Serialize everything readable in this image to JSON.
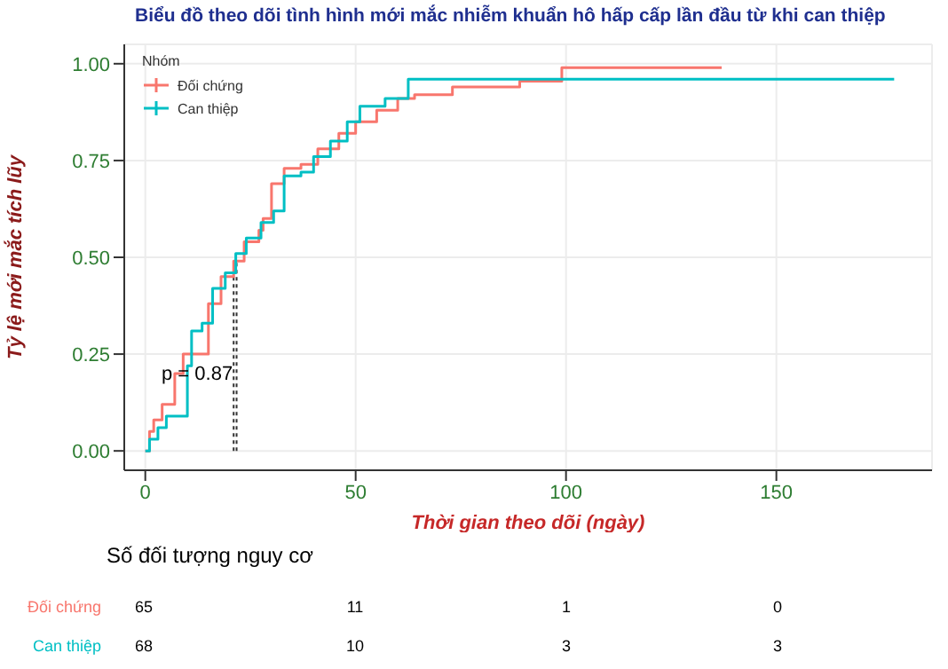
{
  "chart_data": [
    {
      "type": "step",
      "title": "Biểu đồ theo dõi tình hình mới mắc nhiễm khuẩn hô hấp cấp lần đầu từ khi can thiệp",
      "xlabel": "Thời gian theo dõi (ngày)",
      "ylabel": "Tỷ lệ mới mắc tích lũy",
      "legend_title": "Nhóm",
      "legend": "top left",
      "grid": true,
      "xlim": [
        -5,
        187
      ],
      "xticks": [
        0,
        50,
        100,
        150
      ],
      "ylim": [
        -0.05,
        1.05
      ],
      "yticks": [
        {
          "value": 0,
          "label": "0.00"
        },
        {
          "value": 0.25,
          "label": "0.25"
        },
        {
          "value": 0.5,
          "label": "0.50"
        },
        {
          "value": 0.75,
          "label": "0.75"
        },
        {
          "value": 1,
          "label": "1.00"
        }
      ],
      "series": [
        {
          "name": "Đối chứng",
          "color": "#f8766d",
          "x": [
            0,
            1,
            2,
            4,
            7,
            9,
            14,
            15,
            18,
            21,
            23.5,
            27,
            28,
            30,
            33,
            37,
            41,
            46,
            50,
            55,
            60,
            64,
            73,
            89,
            99,
            137
          ],
          "values": [
            0,
            0.05,
            0.08,
            0.12,
            0.2,
            0.25,
            0.25,
            0.38,
            0.45,
            0.49,
            0.54,
            0.57,
            0.6,
            0.69,
            0.73,
            0.74,
            0.78,
            0.82,
            0.85,
            0.88,
            0.91,
            0.92,
            0.94,
            0.955,
            0.99,
            0.99
          ]
        },
        {
          "name": "Can thiệp",
          "color": "#00bfc4",
          "x": [
            0,
            1,
            3,
            5,
            10,
            11,
            13.5,
            16,
            19,
            21.5,
            24,
            27.5,
            30.5,
            33,
            37,
            40,
            44,
            48,
            51,
            57,
            62.5,
            178
          ],
          "values": [
            0,
            0.03,
            0.06,
            0.09,
            0.22,
            0.31,
            0.33,
            0.42,
            0.46,
            0.51,
            0.55,
            0.59,
            0.62,
            0.71,
            0.72,
            0.76,
            0.8,
            0.85,
            0.89,
            0.91,
            0.96,
            0.96
          ]
        }
      ],
      "ref_lines": [
        {
          "axis": "x",
          "value": 21,
          "line_style": "dotted",
          "color": "#333333"
        },
        {
          "axis": "x",
          "value": 21.7,
          "line_style": "dotted",
          "color": "#333333"
        }
      ],
      "annotations": [
        "p = 0.87"
      ]
    },
    {
      "type": "other",
      "title": "Số đối tượng nguy cơ",
      "annotations": [
        "Đối chứng",
        "65",
        "11",
        "1",
        "0",
        "Can thiệp",
        "68",
        "10",
        "3",
        "3"
      ]
    }
  ]
}
